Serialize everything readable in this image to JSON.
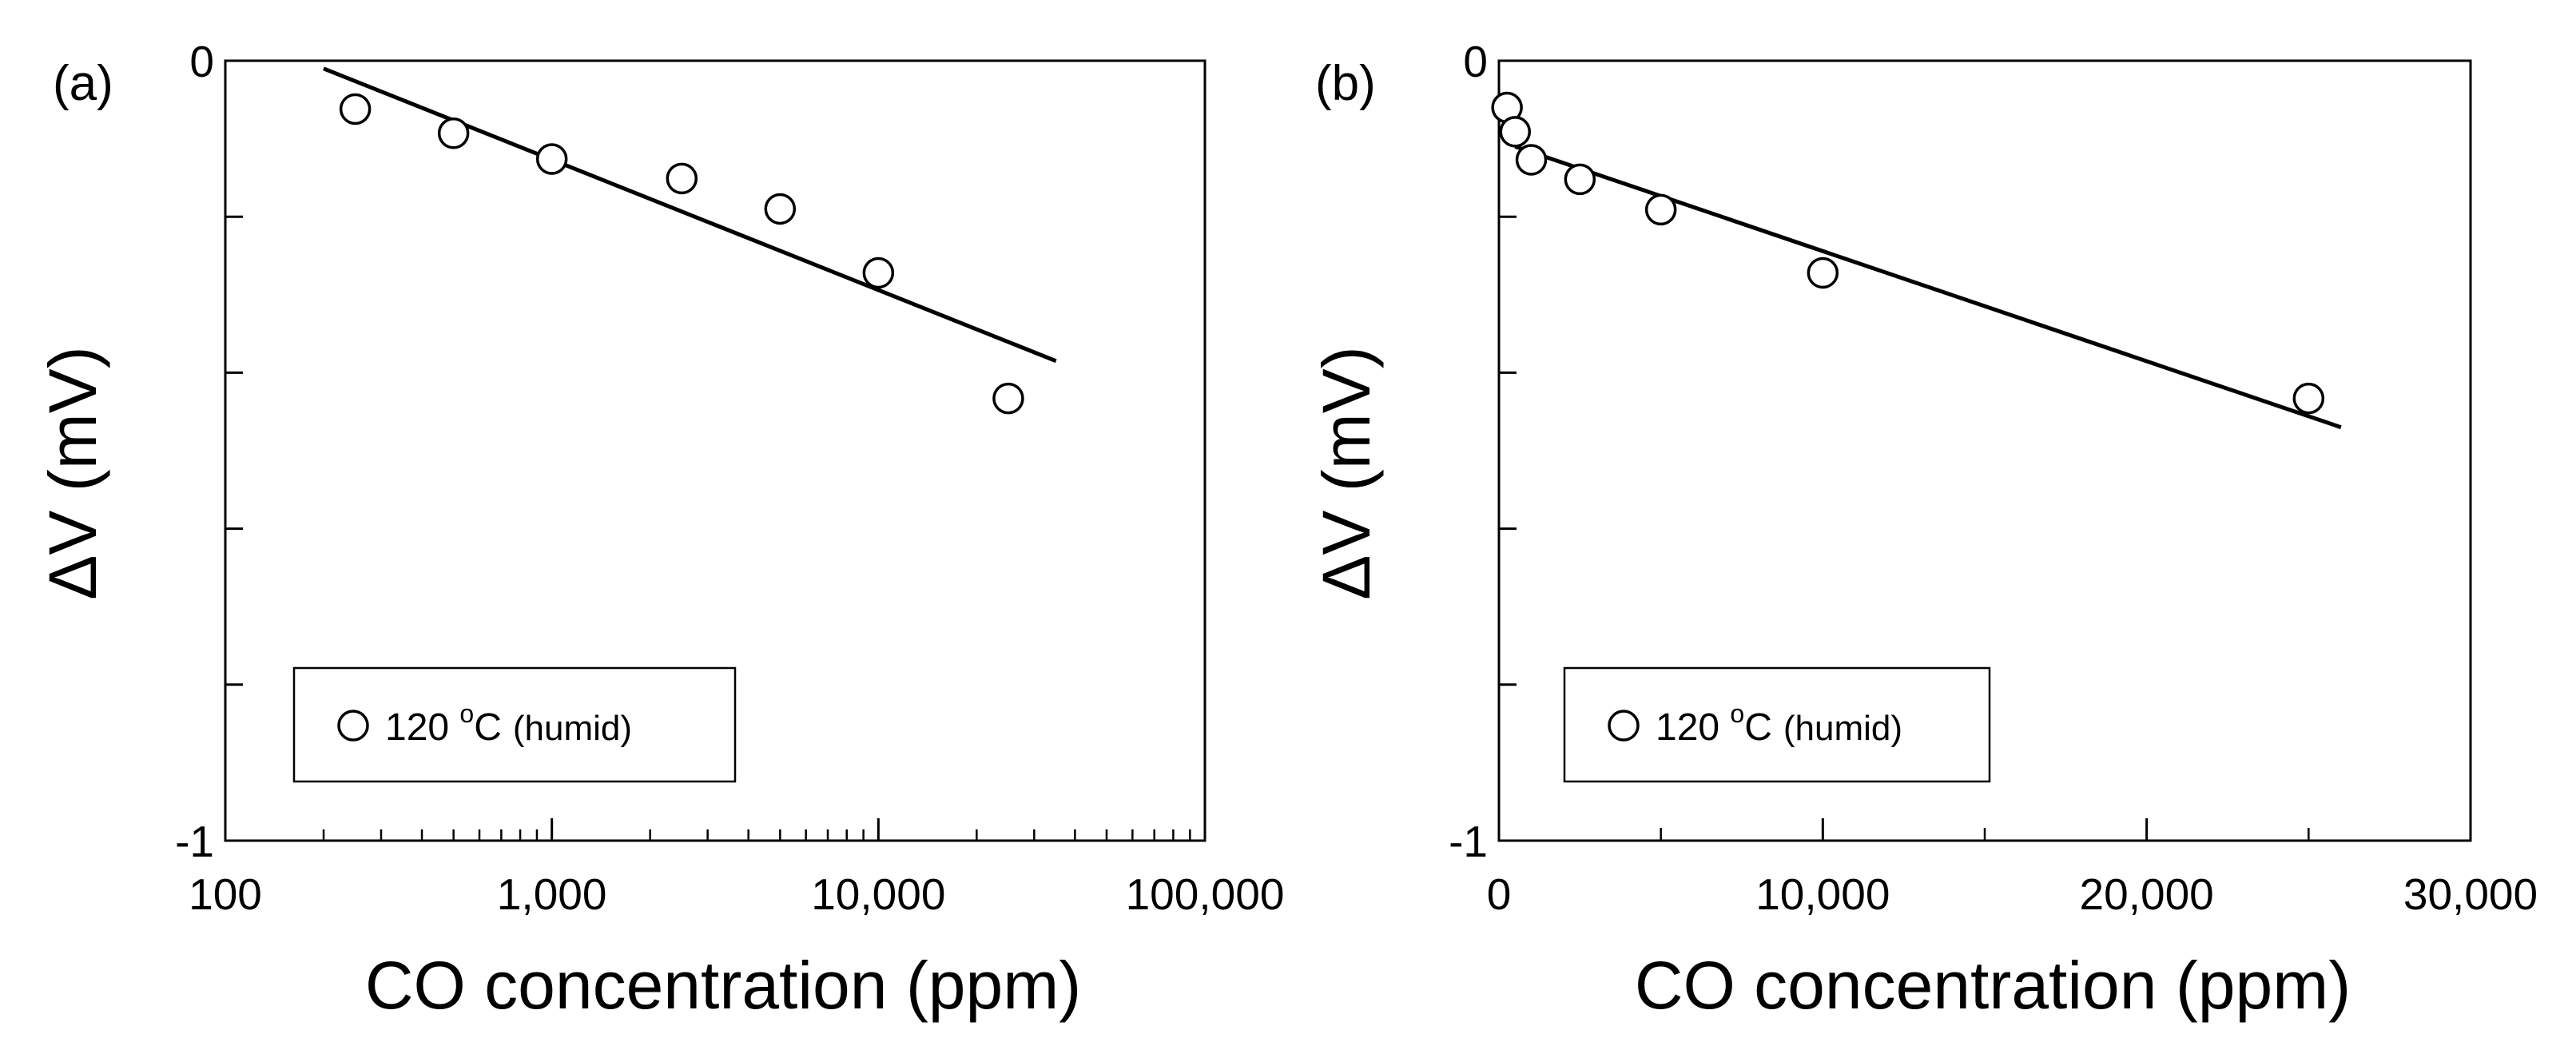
{
  "chart_data": [
    {
      "type": "scatter",
      "panel_label": "(a)",
      "xscale": "log",
      "xlim": [
        100,
        100000
      ],
      "ylim": [
        -1,
        0
      ],
      "xlabel": "CO concentration (ppm)",
      "ylabel": "ΔV (mV)",
      "xticks": [
        {
          "value": 100,
          "label": "100"
        },
        {
          "value": 1000,
          "label": "1,000"
        },
        {
          "value": 10000,
          "label": "10,000"
        },
        {
          "value": 100000,
          "label": "100,000"
        }
      ],
      "yticks": [
        {
          "value": 0,
          "label": "0"
        },
        {
          "value": -0.2,
          "label": ""
        },
        {
          "value": -0.4,
          "label": ""
        },
        {
          "value": -0.6,
          "label": ""
        },
        {
          "value": -0.8,
          "label": ""
        },
        {
          "value": -1,
          "label": "-1"
        }
      ],
      "series": [
        {
          "name": "120 °C (humid)",
          "marker": "open-circle",
          "x": [
            250,
            500,
            1000,
            2500,
            5000,
            10000,
            25000
          ],
          "y": [
            -0.062,
            -0.093,
            -0.126,
            -0.151,
            -0.19,
            -0.272,
            -0.433
          ]
        }
      ],
      "fit_line": {
        "x": [
          200,
          35000
        ],
        "y": [
          -0.01,
          -0.385
        ]
      },
      "legend": {
        "position": "bottom-left",
        "label_main": "120 ",
        "label_sup": "o",
        "label_unit": "C",
        "label_note": "(humid)"
      }
    },
    {
      "type": "scatter",
      "panel_label": "(b)",
      "xscale": "linear",
      "xlim": [
        0,
        30000
      ],
      "ylim": [
        -1,
        0
      ],
      "xlabel": "CO concentration (ppm)",
      "ylabel": "ΔV (mV)",
      "xticks": [
        {
          "value": 0,
          "label": "0"
        },
        {
          "value": 10000,
          "label": "10,000"
        },
        {
          "value": 20000,
          "label": "20,000"
        },
        {
          "value": 30000,
          "label": "30,000"
        }
      ],
      "yticks": [
        {
          "value": 0,
          "label": "0"
        },
        {
          "value": -0.2,
          "label": ""
        },
        {
          "value": -0.4,
          "label": ""
        },
        {
          "value": -0.6,
          "label": ""
        },
        {
          "value": -0.8,
          "label": ""
        },
        {
          "value": -1,
          "label": "-1"
        }
      ],
      "series": [
        {
          "name": "120 °C (humid)",
          "marker": "open-circle",
          "x": [
            250,
            500,
            1000,
            2500,
            5000,
            10000,
            25000
          ],
          "y": [
            -0.06,
            -0.091,
            -0.127,
            -0.152,
            -0.191,
            -0.272,
            -0.433
          ]
        }
      ],
      "fit_line": {
        "x": [
          500,
          26000
        ],
        "y": [
          -0.11,
          -0.47
        ]
      },
      "legend": {
        "position": "bottom-left",
        "label_main": "120 ",
        "label_sup": "o",
        "label_unit": "C",
        "label_note": "(humid)"
      }
    }
  ]
}
